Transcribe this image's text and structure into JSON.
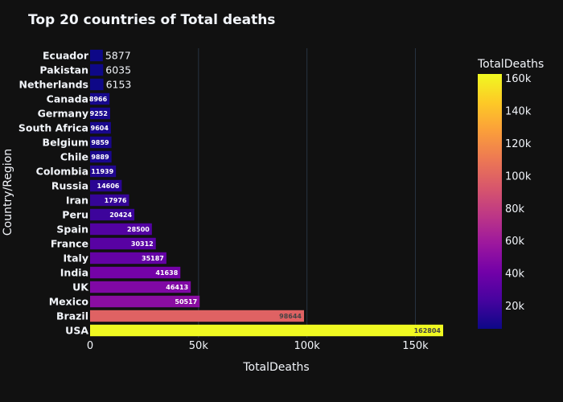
{
  "chart_data": {
    "type": "bar",
    "orientation": "horizontal",
    "title": "Top 20 countries of Total deaths",
    "xlabel": "TotalDeaths",
    "ylabel": "Country/Region",
    "xlim": [
      0,
      162804
    ],
    "x_ticks": [
      0,
      50000,
      100000,
      150000
    ],
    "x_tick_labels": [
      "0",
      "50k",
      "100k",
      "150k"
    ],
    "grid": true,
    "categories": [
      "Ecuador",
      "Pakistan",
      "Netherlands",
      "Canada",
      "Germany",
      "South Africa",
      "Belgium",
      "Chile",
      "Colombia",
      "Russia",
      "Iran",
      "Peru",
      "Spain",
      "France",
      "Italy",
      "India",
      "UK",
      "Mexico",
      "Brazil",
      "USA"
    ],
    "values": [
      5877,
      6035,
      6153,
      8966,
      9252,
      9604,
      9859,
      9889,
      11939,
      14606,
      17976,
      20424,
      28500,
      30312,
      35187,
      41638,
      46413,
      50517,
      98644,
      162804
    ],
    "data_labels": [
      "5877",
      "6035",
      "6153",
      "8966",
      "9252",
      "9604",
      "9859",
      "9889",
      "11939",
      "14606",
      "17976",
      "20424",
      "28500",
      "30312",
      "35187",
      "41638",
      "46413",
      "50517",
      "98644",
      "162804"
    ],
    "colorscale": "plasma",
    "colorbar": {
      "title": "TotalDeaths",
      "range": [
        5877,
        162804
      ],
      "ticks": [
        20000,
        40000,
        60000,
        80000,
        100000,
        120000,
        140000,
        160000
      ],
      "tick_labels": [
        "20k",
        "40k",
        "60k",
        "80k",
        "100k",
        "120k",
        "140k",
        "160k"
      ],
      "placement": "right"
    },
    "colors": {
      "background": "#111111",
      "text": "#f2f5fa",
      "grid": "#283442"
    }
  }
}
